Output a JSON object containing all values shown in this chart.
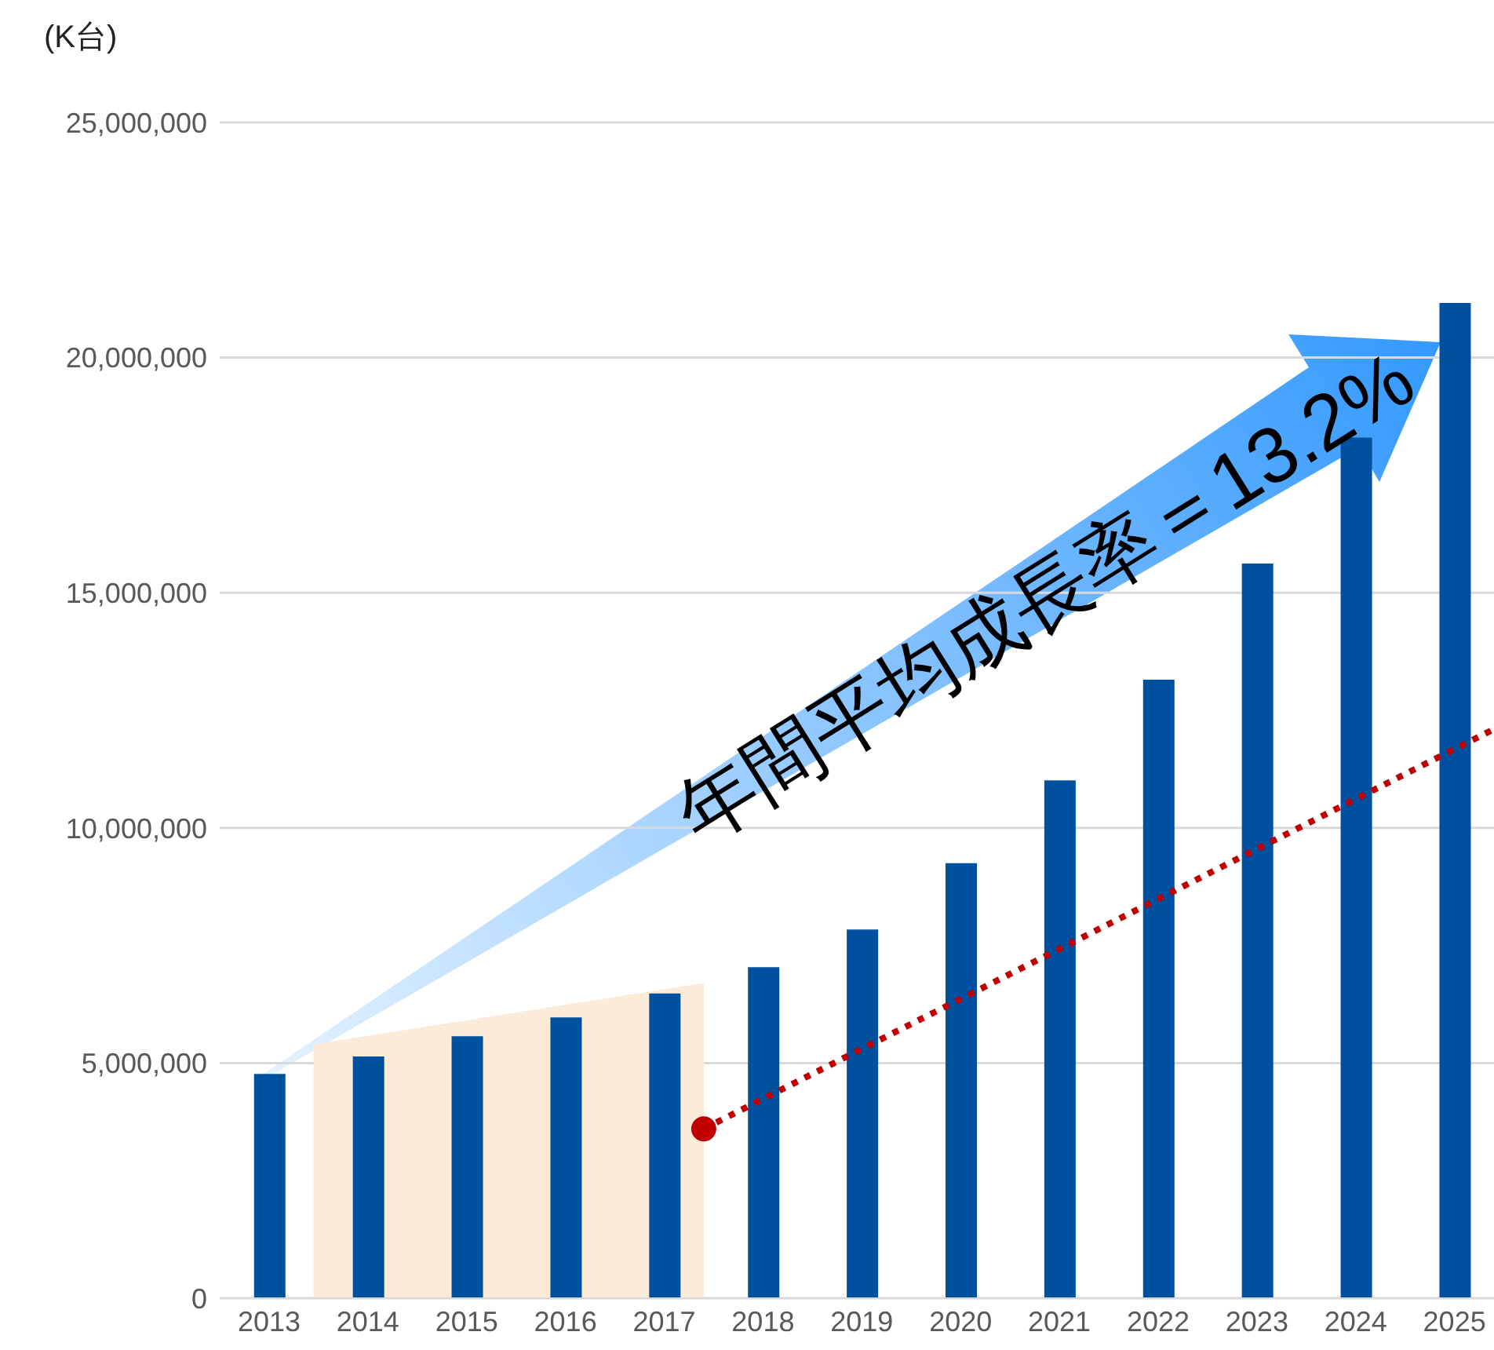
{
  "chart_data": {
    "type": "bar",
    "ylabel": "(K台)",
    "x": [
      2013,
      2014,
      2015,
      2016,
      2017,
      2018,
      2019,
      2020,
      2021,
      2022,
      2023,
      2024,
      2025
    ],
    "series": [
      {
        "color": "#0050a0",
        "values": [
          4770000,
          5140000,
          5570000,
          5970000,
          6480000,
          7040000,
          7840000,
          9250000,
          11010000,
          13150000,
          15620000,
          18300000,
          21160000
        ]
      },
      {
        "type": "area",
        "color": "#fdebd9",
        "x": [
          2013.45,
          2017.4
        ],
        "values": [
          5400000,
          6700000
        ]
      },
      {
        "type": "line",
        "color": "#c00000",
        "line_style": "dotted",
        "marker": "none",
        "x": [
          2017.4,
          2025.4
        ],
        "values": [
          3600000,
          12100000
        ]
      },
      {
        "type": "scatter",
        "color": "#c00000",
        "marker": "circle",
        "x": [
          2017.4
        ],
        "values": [
          3600000
        ]
      }
    ],
    "xlim": [
      2012.5,
      2025.4
    ],
    "xticks": [
      2013,
      2014,
      2015,
      2016,
      2017,
      2018,
      2019,
      2020,
      2021,
      2022,
      2023,
      2024,
      2025
    ],
    "ylim": [
      0,
      25000000
    ],
    "yticks": [
      0,
      {
        "value": 5000000,
        "label": "5,000,000"
      },
      {
        "value": 10000000,
        "label": "10,000,000"
      },
      {
        "value": 15000000,
        "label": "15,000,000"
      },
      {
        "value": 20000000,
        "label": "20,000,000"
      },
      {
        "value": 25000000,
        "label": "25,000,000"
      }
    ],
    "grid": "y",
    "annotations": [
      "年間平均成長率＝13.2%"
    ]
  }
}
